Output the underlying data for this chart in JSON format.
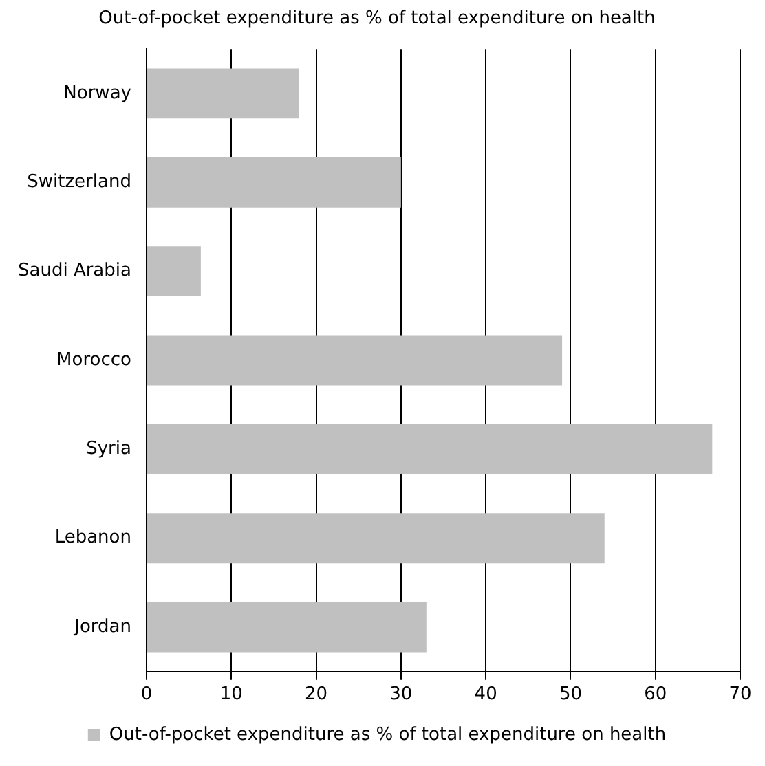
{
  "chart_data": {
    "type": "bar",
    "orientation": "horizontal",
    "title": "Out-of-pocket expenditure as % of total expenditure on health",
    "categories": [
      "Norway",
      "Switzerland",
      "Saudi Arabia",
      "Morocco",
      "Syria",
      "Lebanon",
      "Jordan"
    ],
    "series": [
      {
        "name": "Out-of-pocket expenditure as % of total expenditure on health",
        "color": "#c0c0c0",
        "values": [
          18,
          30,
          6.4,
          49,
          66.7,
          54,
          33
        ]
      }
    ],
    "xlim": [
      0,
      70
    ],
    "xticks": [
      0,
      10,
      20,
      30,
      40,
      50,
      60,
      70
    ],
    "grid": "x",
    "legend": "bottom"
  }
}
